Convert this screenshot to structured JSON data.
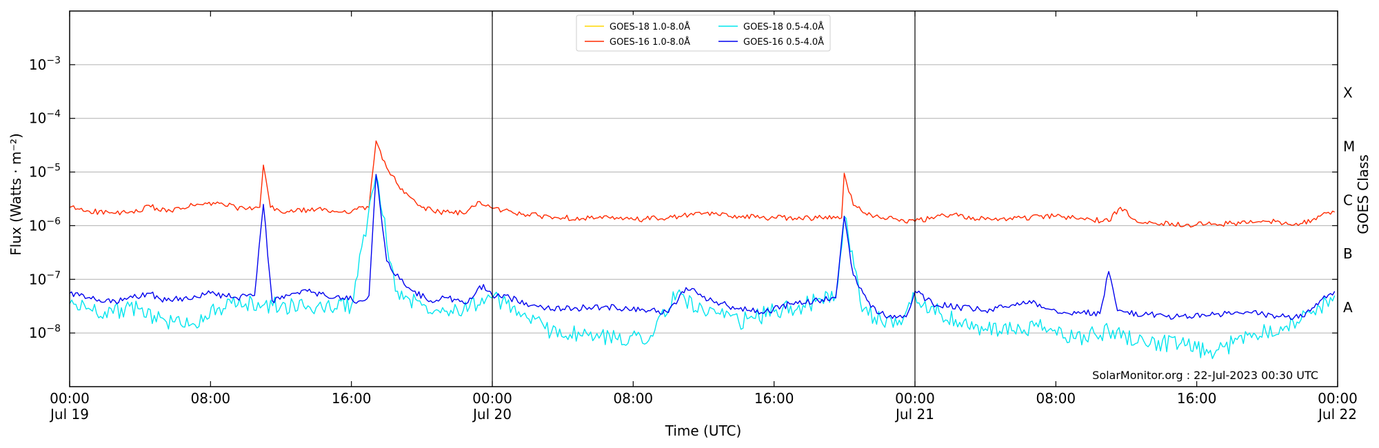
{
  "chart_data": {
    "type": "line",
    "title": "",
    "xlabel": "Time (UTC)",
    "ylabel": "Flux (Watts · m⁻²)",
    "right_label": "GOES Class",
    "y_scale": "log",
    "ylim": [
      1e-09,
      0.01
    ],
    "xlim": [
      "2023-07-19T00:00",
      "2023-07-22T00:00"
    ],
    "grid": "horizontal at decades",
    "legend_placement": "top-center",
    "y_ticks": [
      {
        "value": 1e-08,
        "label_base": "10",
        "label_exp": "−8"
      },
      {
        "value": 1e-07,
        "label_base": "10",
        "label_exp": "−7"
      },
      {
        "value": 1e-06,
        "label_base": "10",
        "label_exp": "−6"
      },
      {
        "value": 1e-05,
        "label_base": "10",
        "label_exp": "−5"
      },
      {
        "value": 0.0001,
        "label_base": "10",
        "label_exp": "−4"
      },
      {
        "value": 0.001,
        "label_base": "10",
        "label_exp": "−3"
      }
    ],
    "x_ticks": [
      {
        "time": "2023-07-19T00:00",
        "line1": "00:00",
        "line2": "Jul 19"
      },
      {
        "time": "2023-07-19T08:00",
        "line1": "08:00",
        "line2": ""
      },
      {
        "time": "2023-07-19T16:00",
        "line1": "16:00",
        "line2": ""
      },
      {
        "time": "2023-07-20T00:00",
        "line1": "00:00",
        "line2": "Jul 20"
      },
      {
        "time": "2023-07-20T08:00",
        "line1": "08:00",
        "line2": ""
      },
      {
        "time": "2023-07-20T16:00",
        "line1": "16:00",
        "line2": ""
      },
      {
        "time": "2023-07-21T00:00",
        "line1": "00:00",
        "line2": "Jul 21"
      },
      {
        "time": "2023-07-21T08:00",
        "line1": "08:00",
        "line2": ""
      },
      {
        "time": "2023-07-21T16:00",
        "line1": "16:00",
        "line2": ""
      },
      {
        "time": "2023-07-22T00:00",
        "line1": "00:00",
        "line2": "Jul 22"
      }
    ],
    "day_boundaries": [
      "2023-07-20T00:00",
      "2023-07-21T00:00"
    ],
    "goes_classes": [
      {
        "label": "A",
        "value": 3e-08
      },
      {
        "label": "B",
        "value": 3e-07
      },
      {
        "label": "C",
        "value": 3e-06
      },
      {
        "label": "M",
        "value": 3e-05
      },
      {
        "label": "X",
        "value": 0.0003
      }
    ],
    "series": [
      {
        "name": "GOES-18 1.0-8.0Å",
        "color": "#ffd700",
        "times": [],
        "values": []
      },
      {
        "name": "GOES-16 1.0-8.0Å",
        "color": "#ff2a00",
        "times": [
          "2023-07-19T00:00",
          "2023-07-19T01:00",
          "2023-07-19T02:30",
          "2023-07-19T04:00",
          "2023-07-19T04:30",
          "2023-07-19T05:30",
          "2023-07-19T07:00",
          "2023-07-19T08:30",
          "2023-07-19T10:00",
          "2023-07-19T10:48",
          "2023-07-19T11:00",
          "2023-07-19T11:24",
          "2023-07-19T12:00",
          "2023-07-19T14:00",
          "2023-07-19T15:30",
          "2023-07-19T17:00",
          "2023-07-19T17:24",
          "2023-07-19T18:00",
          "2023-07-19T19:00",
          "2023-07-19T20:00",
          "2023-07-19T21:00",
          "2023-07-19T22:30",
          "2023-07-19T23:10",
          "2023-07-20T00:00",
          "2023-07-20T02:00",
          "2023-07-20T04:00",
          "2023-07-20T06:00",
          "2023-07-20T08:00",
          "2023-07-20T10:00",
          "2023-07-20T12:00",
          "2023-07-20T14:00",
          "2023-07-20T16:00",
          "2023-07-20T18:00",
          "2023-07-20T19:50",
          "2023-07-20T19:59",
          "2023-07-20T20:30",
          "2023-07-20T21:30",
          "2023-07-20T23:00",
          "2023-07-21T00:00",
          "2023-07-21T02:00",
          "2023-07-21T04:00",
          "2023-07-21T06:00",
          "2023-07-21T08:00",
          "2023-07-21T10:00",
          "2023-07-21T11:00",
          "2023-07-21T11:40",
          "2023-07-21T12:30",
          "2023-07-21T14:00",
          "2023-07-21T16:00",
          "2023-07-21T18:00",
          "2023-07-21T20:00",
          "2023-07-21T22:00",
          "2023-07-21T23:00",
          "2023-07-21T23:50"
        ],
        "values": [
          2.2e-06,
          1.9e-06,
          1.7e-06,
          1.8e-06,
          2.4e-06,
          1.8e-06,
          2.4e-06,
          2.6e-06,
          2e-06,
          2.2e-06,
          1.35e-05,
          2.2e-06,
          1.8e-06,
          2e-06,
          1.8e-06,
          2.2e-06,
          3.8e-05,
          1.2e-05,
          4e-06,
          2.2e-06,
          1.8e-06,
          1.7e-06,
          2.8e-06,
          2.1e-06,
          1.6e-06,
          1.4e-06,
          1.4e-06,
          1.3e-06,
          1.4e-06,
          1.7e-06,
          1.5e-06,
          1.4e-06,
          1.4e-06,
          1.4e-06,
          9.5e-06,
          2.4e-06,
          1.6e-06,
          1.3e-06,
          1.2e-06,
          1.6e-06,
          1.3e-06,
          1.4e-06,
          1.5e-06,
          1.3e-06,
          1.2e-06,
          2.2e-06,
          1.3e-06,
          1.1e-06,
          1.05e-06,
          1.1e-06,
          1.2e-06,
          1.1e-06,
          1.5e-06,
          1.8e-06
        ]
      },
      {
        "name": "GOES-18 0.5-4.0Å",
        "color": "#00e5ee",
        "times": [
          "2023-07-19T00:00",
          "2023-07-19T02:00",
          "2023-07-19T04:00",
          "2023-07-19T05:30",
          "2023-07-19T07:00",
          "2023-07-19T08:30",
          "2023-07-19T10:00",
          "2023-07-19T12:00",
          "2023-07-19T14:00",
          "2023-07-19T16:00",
          "2023-07-19T17:24",
          "2023-07-19T18:30",
          "2023-07-19T20:00",
          "2023-07-19T22:00",
          "2023-07-20T00:00",
          "2023-07-20T01:30",
          "2023-07-20T03:00",
          "2023-07-20T05:00",
          "2023-07-20T07:00",
          "2023-07-20T09:00",
          "2023-07-20T10:30",
          "2023-07-20T12:00",
          "2023-07-20T14:00",
          "2023-07-20T16:00",
          "2023-07-20T18:00",
          "2023-07-20T19:30",
          "2023-07-20T19:59",
          "2023-07-20T21:00",
          "2023-07-20T23:00",
          "2023-07-21T00:00",
          "2023-07-21T01:30",
          "2023-07-21T03:00",
          "2023-07-21T04:00",
          "2023-07-21T05:30",
          "2023-07-21T07:00",
          "2023-07-21T09:00",
          "2023-07-21T11:00",
          "2023-07-21T13:00",
          "2023-07-21T15:00",
          "2023-07-21T16:00",
          "2023-07-21T17:00",
          "2023-07-21T19:00",
          "2023-07-21T21:00",
          "2023-07-21T22:30",
          "2023-07-21T23:50"
        ],
        "values": [
          3.5e-08,
          2.5e-08,
          2.8e-08,
          1.6e-08,
          1.5e-08,
          3e-08,
          3.5e-08,
          3.2e-08,
          3e-08,
          3.3e-08,
          9e-06,
          6e-08,
          3.3e-08,
          2.8e-08,
          4.5e-08,
          2.5e-08,
          1.2e-08,
          9e-09,
          8e-09,
          9e-09,
          5.5e-08,
          2.5e-08,
          1.6e-08,
          2.5e-08,
          3.5e-08,
          5e-08,
          1.5e-06,
          2.5e-08,
          1.4e-08,
          5e-08,
          2.2e-08,
          1.3e-08,
          1.2e-08,
          1.1e-08,
          1.3e-08,
          8e-09,
          1.1e-08,
          7e-09,
          6e-09,
          5e-09,
          4e-09,
          1e-08,
          1.3e-08,
          2.3e-08,
          5e-08
        ]
      },
      {
        "name": "GOES-16 0.5-4.0Å",
        "color": "#0000ee",
        "times": [
          "2023-07-19T00:00",
          "2023-07-19T01:00",
          "2023-07-19T02:00",
          "2023-07-19T03:00",
          "2023-07-19T04:30",
          "2023-07-19T05:30",
          "2023-07-19T06:30",
          "2023-07-19T08:00",
          "2023-07-19T09:30",
          "2023-07-19T10:30",
          "2023-07-19T11:00",
          "2023-07-19T11:30",
          "2023-07-19T12:30",
          "2023-07-19T13:30",
          "2023-07-19T14:30",
          "2023-07-19T15:30",
          "2023-07-19T16:30",
          "2023-07-19T17:00",
          "2023-07-19T17:24",
          "2023-07-19T18:00",
          "2023-07-19T18:45",
          "2023-07-19T19:30",
          "2023-07-19T20:30",
          "2023-07-19T21:30",
          "2023-07-19T22:30",
          "2023-07-19T23:30",
          "2023-07-20T00:00",
          "2023-07-20T01:00",
          "2023-07-20T02:30",
          "2023-07-20T04:00",
          "2023-07-20T05:30",
          "2023-07-20T07:00",
          "2023-07-20T08:30",
          "2023-07-20T10:00",
          "2023-07-20T11:00",
          "2023-07-20T12:30",
          "2023-07-20T14:00",
          "2023-07-20T15:30",
          "2023-07-20T17:00",
          "2023-07-20T18:30",
          "2023-07-20T19:30",
          "2023-07-20T19:59",
          "2023-07-20T20:30",
          "2023-07-20T21:30",
          "2023-07-20T22:30",
          "2023-07-20T23:30",
          "2023-07-21T00:00",
          "2023-07-21T01:00",
          "2023-07-21T02:30",
          "2023-07-21T04:00",
          "2023-07-21T05:00",
          "2023-07-21T06:30",
          "2023-07-21T08:00",
          "2023-07-21T09:30",
          "2023-07-21T10:30",
          "2023-07-21T11:00",
          "2023-07-21T11:30",
          "2023-07-21T13:00",
          "2023-07-21T15:00",
          "2023-07-21T17:00",
          "2023-07-21T19:00",
          "2023-07-21T21:00",
          "2023-07-21T22:00",
          "2023-07-21T23:00",
          "2023-07-21T23:50"
        ],
        "values": [
          5.5e-08,
          4.5e-08,
          3.8e-08,
          4e-08,
          5.5e-08,
          4e-08,
          4.5e-08,
          5.5e-08,
          4.5e-08,
          5e-08,
          2.5e-06,
          4e-08,
          5e-08,
          6e-08,
          5e-08,
          4.5e-08,
          4e-08,
          5e-08,
          9e-06,
          2.2e-07,
          1e-07,
          6e-08,
          4e-08,
          4.5e-08,
          3.5e-08,
          8e-08,
          5e-08,
          4.5e-08,
          3.2e-08,
          2.8e-08,
          3e-08,
          3e-08,
          2.8e-08,
          2.4e-08,
          7e-08,
          4e-08,
          2.8e-08,
          2.5e-08,
          3.5e-08,
          4e-08,
          4.5e-08,
          1.5e-06,
          1.2e-07,
          3e-08,
          2e-08,
          2e-08,
          6e-08,
          3.5e-08,
          3e-08,
          2.6e-08,
          3e-08,
          4e-08,
          2.6e-08,
          2.4e-08,
          2.3e-08,
          1.4e-07,
          2.6e-08,
          2.2e-08,
          2e-08,
          2.2e-08,
          2.4e-08,
          2e-08,
          2e-08,
          4e-08,
          6e-08
        ]
      }
    ],
    "credit": "SolarMonitor.org : 22-Jul-2023 00:30 UTC"
  }
}
